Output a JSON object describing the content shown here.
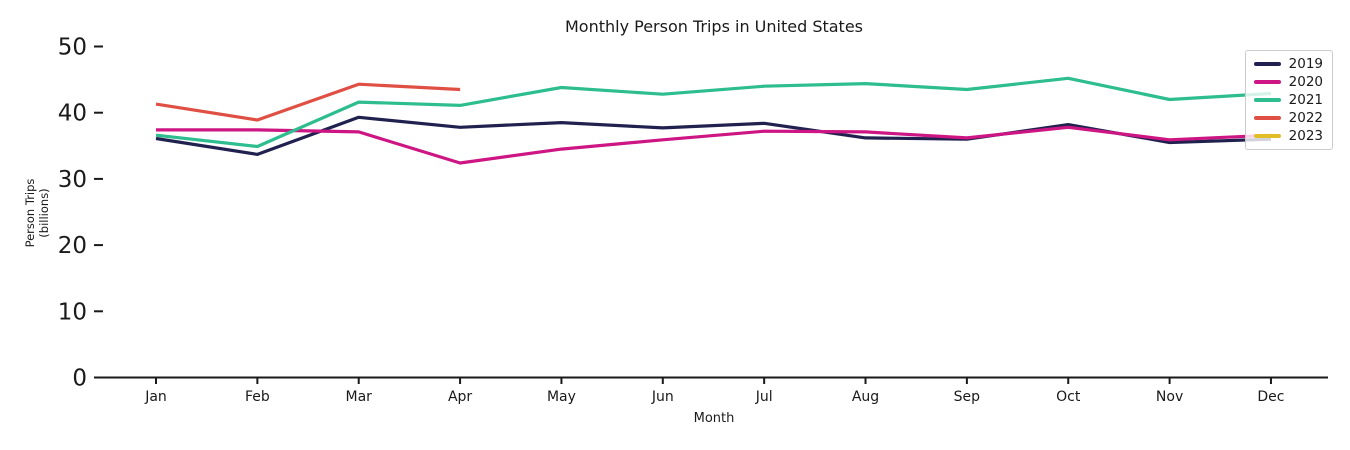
{
  "chart_data": {
    "type": "line",
    "title": "Monthly Person Trips in United States",
    "xlabel": "Month",
    "ylabel_lines": [
      "Person Trips",
      "(billions)"
    ],
    "categories": [
      "Jan",
      "Feb",
      "Mar",
      "Apr",
      "May",
      "Jun",
      "Jul",
      "Aug",
      "Sep",
      "Oct",
      "Nov",
      "Dec"
    ],
    "y_ticks": [
      0,
      10,
      20,
      30,
      40,
      50
    ],
    "ylim": [
      0,
      52
    ],
    "grid": false,
    "legend_position": "upper right",
    "series": [
      {
        "name": "2019",
        "color": "#212150",
        "values": [
          36.1,
          33.7,
          39.3,
          37.8,
          38.5,
          37.7,
          38.4,
          36.2,
          36.0,
          38.2,
          35.5,
          36.0
        ]
      },
      {
        "name": "2020",
        "color": "#cd1683",
        "values": [
          37.4,
          37.4,
          37.1,
          32.4,
          34.5,
          35.9,
          37.2,
          37.1,
          36.2,
          37.8,
          35.9,
          36.6
        ]
      },
      {
        "name": "2021",
        "color": "#2dbd8e",
        "values": [
          36.6,
          34.9,
          41.6,
          41.1,
          43.8,
          42.8,
          44.0,
          44.4,
          43.5,
          45.2,
          42.0,
          42.9
        ]
      },
      {
        "name": "2022",
        "color": "#e04f43",
        "values": [
          41.3,
          38.9,
          44.3,
          43.5,
          null,
          null,
          null,
          null,
          null,
          null,
          null,
          null
        ]
      },
      {
        "name": "2023",
        "color": "#e3bd28",
        "values": [
          null,
          null,
          null,
          null,
          null,
          null,
          null,
          null,
          null,
          null,
          null,
          null
        ]
      }
    ]
  }
}
